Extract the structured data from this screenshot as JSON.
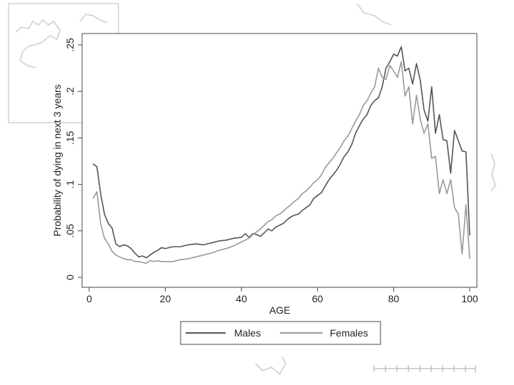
{
  "chart_data": {
    "type": "line",
    "title": "",
    "xlabel": "AGE",
    "ylabel": "Probability of dying in next 3 years",
    "xlim": [
      0,
      100
    ],
    "ylim": [
      0,
      0.25
    ],
    "x_ticks": [
      0,
      20,
      40,
      60,
      80,
      100
    ],
    "x_tick_labels": [
      "0",
      "20",
      "40",
      "60",
      "80",
      "100"
    ],
    "y_ticks": [
      0,
      0.05,
      0.1,
      0.15,
      0.2,
      0.25
    ],
    "y_tick_labels": [
      "0",
      ".05",
      ".1",
      ".15",
      ".2",
      ".25"
    ],
    "grid": false,
    "legend_position": "bottom",
    "series": [
      {
        "name": "Males",
        "color": "#555555",
        "points": [
          [
            1,
            0.122
          ],
          [
            2,
            0.119
          ],
          [
            3,
            0.09
          ],
          [
            4,
            0.068
          ],
          [
            5,
            0.058
          ],
          [
            6,
            0.053
          ],
          [
            7,
            0.036
          ],
          [
            8,
            0.033
          ],
          [
            9,
            0.035
          ],
          [
            10,
            0.034
          ],
          [
            11,
            0.031
          ],
          [
            12,
            0.026
          ],
          [
            13,
            0.022
          ],
          [
            14,
            0.023
          ],
          [
            15,
            0.021
          ],
          [
            16,
            0.024
          ],
          [
            17,
            0.027
          ],
          [
            18,
            0.029
          ],
          [
            19,
            0.032
          ],
          [
            20,
            0.031
          ],
          [
            22,
            0.033
          ],
          [
            24,
            0.033
          ],
          [
            26,
            0.035
          ],
          [
            28,
            0.036
          ],
          [
            30,
            0.035
          ],
          [
            32,
            0.037
          ],
          [
            34,
            0.039
          ],
          [
            36,
            0.04
          ],
          [
            38,
            0.042
          ],
          [
            40,
            0.043
          ],
          [
            41,
            0.047
          ],
          [
            42,
            0.043
          ],
          [
            43,
            0.047
          ],
          [
            44,
            0.046
          ],
          [
            45,
            0.044
          ],
          [
            46,
            0.048
          ],
          [
            47,
            0.052
          ],
          [
            48,
            0.05
          ],
          [
            49,
            0.054
          ],
          [
            50,
            0.056
          ],
          [
            51,
            0.058
          ],
          [
            52,
            0.062
          ],
          [
            53,
            0.065
          ],
          [
            54,
            0.067
          ],
          [
            55,
            0.068
          ],
          [
            56,
            0.072
          ],
          [
            57,
            0.075
          ],
          [
            58,
            0.078
          ],
          [
            59,
            0.085
          ],
          [
            60,
            0.088
          ],
          [
            61,
            0.091
          ],
          [
            62,
            0.098
          ],
          [
            63,
            0.105
          ],
          [
            64,
            0.11
          ],
          [
            65,
            0.115
          ],
          [
            66,
            0.122
          ],
          [
            67,
            0.13
          ],
          [
            68,
            0.135
          ],
          [
            69,
            0.143
          ],
          [
            70,
            0.155
          ],
          [
            71,
            0.163
          ],
          [
            72,
            0.17
          ],
          [
            73,
            0.175
          ],
          [
            74,
            0.185
          ],
          [
            75,
            0.19
          ],
          [
            76,
            0.193
          ],
          [
            77,
            0.205
          ],
          [
            78,
            0.225
          ],
          [
            79,
            0.232
          ],
          [
            80,
            0.24
          ],
          [
            81,
            0.238
          ],
          [
            82,
            0.248
          ],
          [
            83,
            0.222
          ],
          [
            84,
            0.225
          ],
          [
            85,
            0.208
          ],
          [
            86,
            0.23
          ],
          [
            87,
            0.212
          ],
          [
            88,
            0.18
          ],
          [
            89,
            0.168
          ],
          [
            90,
            0.205
          ],
          [
            91,
            0.155
          ],
          [
            92,
            0.175
          ],
          [
            93,
            0.148
          ],
          [
            94,
            0.147
          ],
          [
            95,
            0.112
          ],
          [
            96,
            0.158
          ],
          [
            97,
            0.147
          ],
          [
            98,
            0.136
          ],
          [
            99,
            0.135
          ],
          [
            100,
            0.045
          ]
        ]
      },
      {
        "name": "Females",
        "color": "#999999",
        "points": [
          [
            1,
            0.085
          ],
          [
            2,
            0.092
          ],
          [
            3,
            0.058
          ],
          [
            4,
            0.042
          ],
          [
            5,
            0.036
          ],
          [
            6,
            0.028
          ],
          [
            7,
            0.024
          ],
          [
            8,
            0.022
          ],
          [
            9,
            0.02
          ],
          [
            10,
            0.019
          ],
          [
            11,
            0.019
          ],
          [
            12,
            0.017
          ],
          [
            13,
            0.017
          ],
          [
            14,
            0.016
          ],
          [
            15,
            0.015
          ],
          [
            16,
            0.018
          ],
          [
            17,
            0.017
          ],
          [
            18,
            0.018
          ],
          [
            19,
            0.017
          ],
          [
            20,
            0.017
          ],
          [
            22,
            0.017
          ],
          [
            24,
            0.019
          ],
          [
            26,
            0.02
          ],
          [
            28,
            0.022
          ],
          [
            30,
            0.024
          ],
          [
            32,
            0.026
          ],
          [
            34,
            0.029
          ],
          [
            36,
            0.031
          ],
          [
            38,
            0.034
          ],
          [
            40,
            0.038
          ],
          [
            41,
            0.04
          ],
          [
            42,
            0.042
          ],
          [
            43,
            0.046
          ],
          [
            44,
            0.049
          ],
          [
            45,
            0.052
          ],
          [
            46,
            0.056
          ],
          [
            47,
            0.06
          ],
          [
            48,
            0.062
          ],
          [
            49,
            0.066
          ],
          [
            50,
            0.068
          ],
          [
            51,
            0.071
          ],
          [
            52,
            0.075
          ],
          [
            53,
            0.078
          ],
          [
            54,
            0.082
          ],
          [
            55,
            0.085
          ],
          [
            56,
            0.09
          ],
          [
            57,
            0.093
          ],
          [
            58,
            0.097
          ],
          [
            59,
            0.102
          ],
          [
            60,
            0.105
          ],
          [
            61,
            0.11
          ],
          [
            62,
            0.118
          ],
          [
            63,
            0.123
          ],
          [
            64,
            0.128
          ],
          [
            65,
            0.134
          ],
          [
            66,
            0.14
          ],
          [
            67,
            0.147
          ],
          [
            68,
            0.152
          ],
          [
            69,
            0.16
          ],
          [
            70,
            0.168
          ],
          [
            71,
            0.175
          ],
          [
            72,
            0.185
          ],
          [
            73,
            0.19
          ],
          [
            74,
            0.198
          ],
          [
            75,
            0.205
          ],
          [
            76,
            0.225
          ],
          [
            77,
            0.215
          ],
          [
            78,
            0.213
          ],
          [
            79,
            0.228
          ],
          [
            80,
            0.222
          ],
          [
            81,
            0.215
          ],
          [
            82,
            0.232
          ],
          [
            83,
            0.195
          ],
          [
            84,
            0.205
          ],
          [
            85,
            0.165
          ],
          [
            86,
            0.196
          ],
          [
            87,
            0.17
          ],
          [
            88,
            0.155
          ],
          [
            89,
            0.165
          ],
          [
            90,
            0.128
          ],
          [
            91,
            0.13
          ],
          [
            92,
            0.09
          ],
          [
            93,
            0.105
          ],
          [
            94,
            0.09
          ],
          [
            95,
            0.105
          ],
          [
            96,
            0.075
          ],
          [
            97,
            0.068
          ],
          [
            98,
            0.025
          ],
          [
            99,
            0.078
          ],
          [
            100,
            0.02
          ]
        ]
      }
    ]
  }
}
